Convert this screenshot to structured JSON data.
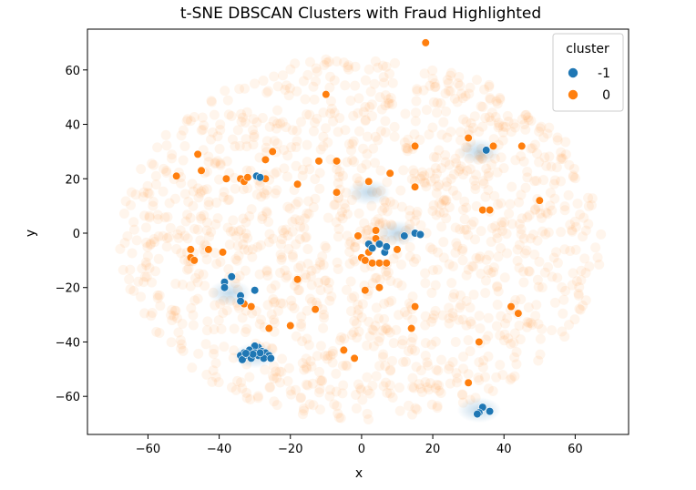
{
  "chart_data": {
    "type": "scatter",
    "title": "t-SNE DBSCAN Clusters with Fraud Highlighted",
    "xlabel": "x",
    "ylabel": "y",
    "xlim": [
      -77,
      75
    ],
    "ylim": [
      -74,
      75
    ],
    "xticks": [
      -60,
      -40,
      -20,
      0,
      20,
      40,
      60
    ],
    "yticks": [
      -60,
      -40,
      -20,
      0,
      20,
      40,
      60
    ],
    "xtick_labels": [
      "−60",
      "−40",
      "−20",
      "0",
      "20",
      "40",
      "60"
    ],
    "ytick_labels": [
      "−60",
      "−40",
      "−20",
      "0",
      "20",
      "40",
      "60"
    ],
    "grid": false,
    "legend": {
      "title": "cluster",
      "placement": "top-right",
      "entries": [
        {
          "label": "-1",
          "color": "#1f77b4"
        },
        {
          "label": "0",
          "color": "#ff7f0e"
        }
      ]
    },
    "background": {
      "description_free": true,
      "orange_region": {
        "center": [
          0,
          -2
        ],
        "rx": 68,
        "ry": 67,
        "color": "#ff7f0e",
        "opacity": 0.08
      },
      "blue_haze": [
        [
          -37,
          -22
        ],
        [
          -30,
          -45
        ],
        [
          10,
          0
        ],
        [
          2,
          15
        ],
        [
          33,
          30
        ],
        [
          33,
          -65
        ]
      ]
    },
    "series": [
      {
        "name": "-1",
        "color": "#1f77b4",
        "points": [
          [
            -29.5,
            21
          ],
          [
            -28.5,
            20.5
          ],
          [
            -36.5,
            -16
          ],
          [
            -38.5,
            -18
          ],
          [
            -38.5,
            -20
          ],
          [
            -30,
            -21
          ],
          [
            -34,
            -23
          ],
          [
            -34,
            -25
          ],
          [
            -29,
            -42
          ],
          [
            -30,
            -41.5
          ],
          [
            -31.5,
            -43
          ],
          [
            -33,
            -44
          ],
          [
            -34,
            -45
          ],
          [
            -32,
            -45
          ],
          [
            -30,
            -44
          ],
          [
            -28,
            -43.5
          ],
          [
            -27,
            -44
          ],
          [
            -26,
            -45
          ],
          [
            -29,
            -45
          ],
          [
            -27.5,
            -46
          ],
          [
            -31,
            -46
          ],
          [
            -33.5,
            -46.5
          ],
          [
            -28.5,
            -44
          ],
          [
            -30.5,
            -44.5
          ],
          [
            -32.5,
            -44.2
          ],
          [
            -25.5,
            -46
          ],
          [
            2,
            -4
          ],
          [
            3,
            -5.5
          ],
          [
            5,
            -4
          ],
          [
            6.5,
            -7
          ],
          [
            7,
            -5
          ],
          [
            12,
            -1
          ],
          [
            15,
            0
          ],
          [
            16.5,
            -0.5
          ],
          [
            35,
            30.5
          ],
          [
            34,
            -64
          ],
          [
            36,
            -65.5
          ],
          [
            33,
            -66
          ],
          [
            32.5,
            -66.5
          ]
        ]
      },
      {
        "name": "0",
        "color": "#ff7f0e",
        "points": [
          [
            18,
            70
          ],
          [
            -10,
            51
          ],
          [
            -46,
            29
          ],
          [
            -45,
            23
          ],
          [
            -52,
            21
          ],
          [
            -38,
            20
          ],
          [
            -34,
            20
          ],
          [
            -33,
            19
          ],
          [
            -32,
            20.5
          ],
          [
            -27,
            20
          ],
          [
            -25,
            30
          ],
          [
            -27,
            27
          ],
          [
            -18,
            18
          ],
          [
            -12,
            26.5
          ],
          [
            -7,
            26.5
          ],
          [
            2,
            19
          ],
          [
            8,
            22
          ],
          [
            15,
            32
          ],
          [
            30,
            35
          ],
          [
            37,
            32
          ],
          [
            15,
            17
          ],
          [
            34,
            8.5
          ],
          [
            36,
            8.5
          ],
          [
            50,
            12
          ],
          [
            -48,
            -6
          ],
          [
            -43,
            -6
          ],
          [
            -48,
            -9
          ],
          [
            -47,
            -10
          ],
          [
            -39,
            -7
          ],
          [
            -33,
            -26
          ],
          [
            -31,
            -27
          ],
          [
            -18,
            -17
          ],
          [
            -13,
            -28
          ],
          [
            -20,
            -34
          ],
          [
            -26,
            -35
          ],
          [
            -2,
            -46
          ],
          [
            -5,
            -43
          ],
          [
            0,
            -9
          ],
          [
            1,
            -10
          ],
          [
            2,
            -7
          ],
          [
            3,
            -11
          ],
          [
            5,
            -11
          ],
          [
            7,
            -11
          ],
          [
            10,
            -6
          ],
          [
            1,
            -21
          ],
          [
            5,
            -20
          ],
          [
            15,
            -27
          ],
          [
            14,
            -35
          ],
          [
            -1,
            -1
          ],
          [
            4,
            1
          ],
          [
            4,
            -2
          ],
          [
            42,
            -27
          ],
          [
            44,
            -29.5
          ],
          [
            33,
            -40
          ],
          [
            30,
            -55
          ],
          [
            45,
            32
          ],
          [
            -7,
            15
          ]
        ]
      }
    ]
  }
}
